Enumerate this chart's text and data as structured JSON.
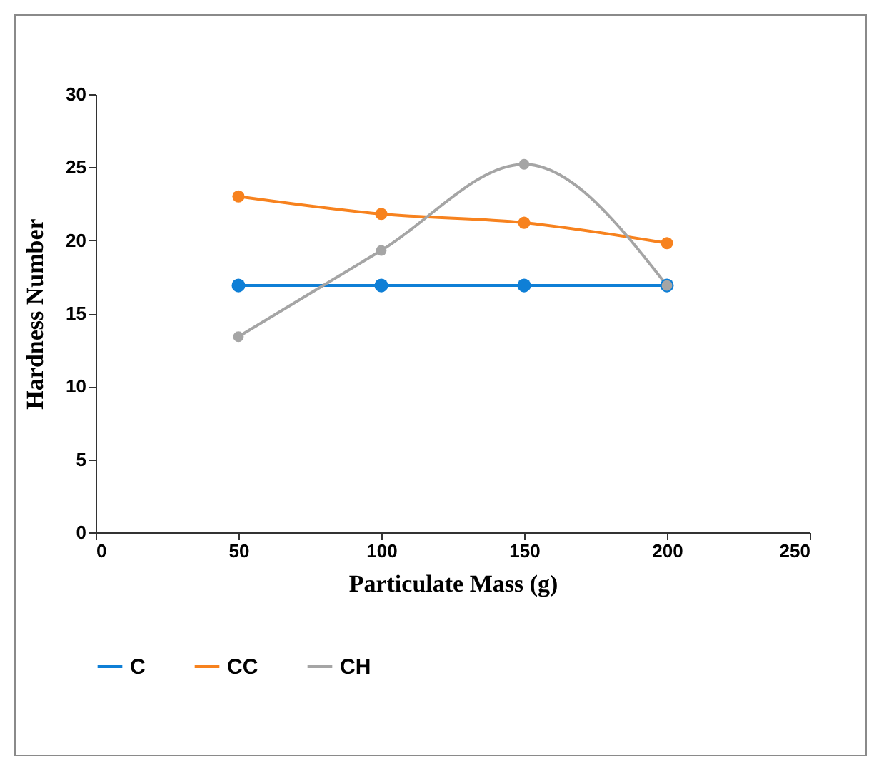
{
  "chart_data": {
    "type": "line",
    "xlabel": "Particulate Mass (g)",
    "ylabel": "Hardness Number",
    "x": [
      50,
      100,
      150,
      200
    ],
    "series": [
      {
        "name": "C",
        "color": "#0f7fd6",
        "values": [
          16.9,
          16.9,
          16.9,
          16.9
        ]
      },
      {
        "name": "CC",
        "color": "#f7821e",
        "values": [
          23.0,
          21.8,
          21.2,
          19.8
        ]
      },
      {
        "name": "CH",
        "color": "#a5a5a5",
        "values": [
          13.4,
          19.3,
          25.2,
          16.9
        ]
      }
    ],
    "xlim": [
      0,
      250
    ],
    "xticks": [
      0,
      50,
      100,
      150,
      200,
      250
    ],
    "ylim": [
      0,
      30
    ],
    "yticks": [
      0,
      5,
      10,
      15,
      20,
      25,
      30
    ],
    "grid": false,
    "legend": "bottom",
    "marker": "circle",
    "line_style": "solid"
  }
}
